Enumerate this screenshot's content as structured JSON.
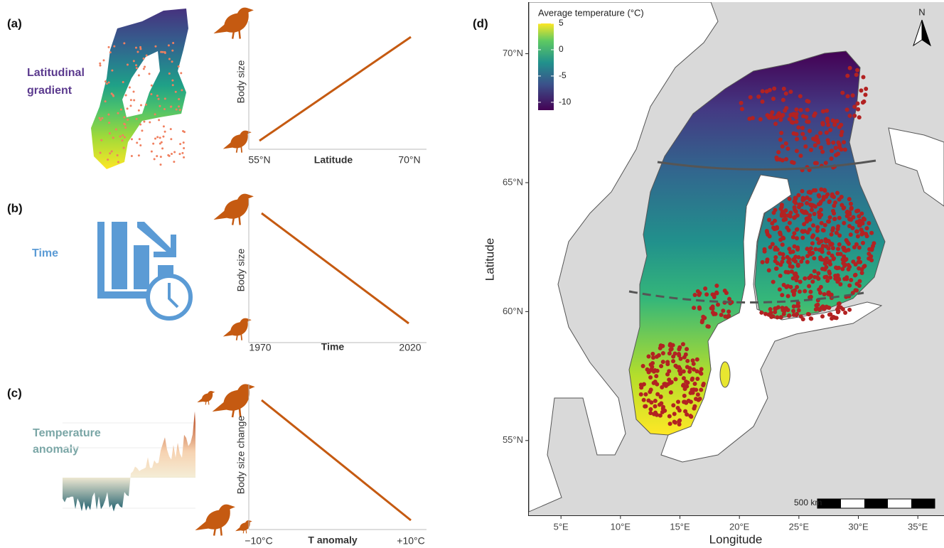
{
  "panels": {
    "a": {
      "tag": "(a)",
      "label": [
        "Latitudinal",
        "gradient"
      ],
      "y_label": "Body size",
      "x_label": "Latitude",
      "x_start": "55°N",
      "x_end": "70°N"
    },
    "b": {
      "tag": "(b)",
      "label": [
        "Time"
      ],
      "y_label": "Body size",
      "x_label": "Time",
      "x_start": "1970",
      "x_end": "2020"
    },
    "c": {
      "tag": "(c)",
      "label": [
        "Temperature",
        "anomaly"
      ],
      "y_label": "Body size change",
      "x_label": "T anomaly",
      "x_start": "−10°C",
      "x_end": "+10°C"
    }
  },
  "map": {
    "tag": "(d)",
    "x_label": "Longitude",
    "y_label": "Latitude",
    "xlim": [
      2.3,
      37.2
    ],
    "ylim": [
      52.1,
      72
    ],
    "xticks": [
      {
        "value": 5,
        "label": "5°E"
      },
      {
        "value": 10,
        "label": "10°E"
      },
      {
        "value": 15,
        "label": "15°E"
      },
      {
        "value": 20,
        "label": "20°E"
      },
      {
        "value": 25,
        "label": "25°E"
      },
      {
        "value": 30,
        "label": "30°E"
      },
      {
        "value": 35,
        "label": "35°E"
      }
    ],
    "yticks": [
      {
        "value": 55,
        "label": "55°N"
      },
      {
        "value": 60,
        "label": "60°N"
      },
      {
        "value": 65,
        "label": "65°N"
      },
      {
        "value": 70,
        "label": "70°N"
      }
    ],
    "legend_title": "Average temperature (°C)",
    "legend_lim": [
      -11.5,
      5
    ],
    "legend_ticks": [
      5,
      0,
      -5,
      -10
    ],
    "scale_bar": "500 km",
    "north": "N"
  }
}
